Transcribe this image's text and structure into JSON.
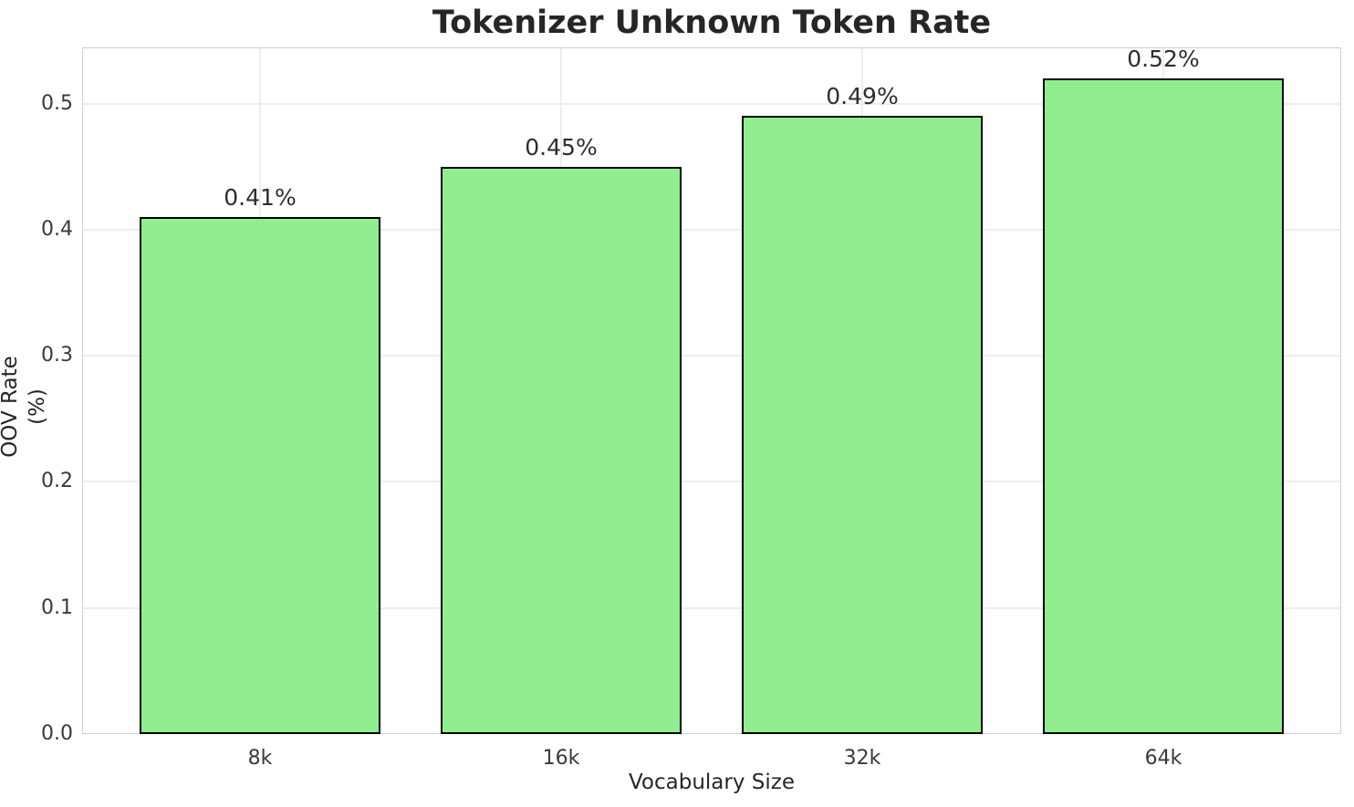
{
  "chart_data": {
    "type": "bar",
    "title": "Tokenizer Unknown Token Rate",
    "categories": [
      "8k",
      "16k",
      "32k",
      "64k"
    ],
    "values": [
      0.41,
      0.45,
      0.49,
      0.52
    ],
    "bar_labels": [
      "0.41%",
      "0.45%",
      "0.49%",
      "0.52%"
    ],
    "xlabel": "Vocabulary Size",
    "ylabel": "OOV Rate (%)",
    "ylim": [
      0,
      0.5445
    ],
    "yticks": [
      0,
      0.1,
      0.2,
      0.3,
      0.4,
      0.5
    ],
    "ytick_labels": [
      "0.0",
      "0.1",
      "0.2",
      "0.3",
      "0.4",
      "0.5"
    ],
    "grid": true,
    "legend_position": "none",
    "colors": {
      "bar_fill": "#90EE90",
      "bar_edge": "#000000",
      "grid_line": "#ededed",
      "spine": "#cfcfcf",
      "text": "#262626",
      "background": "#ffffff"
    }
  }
}
